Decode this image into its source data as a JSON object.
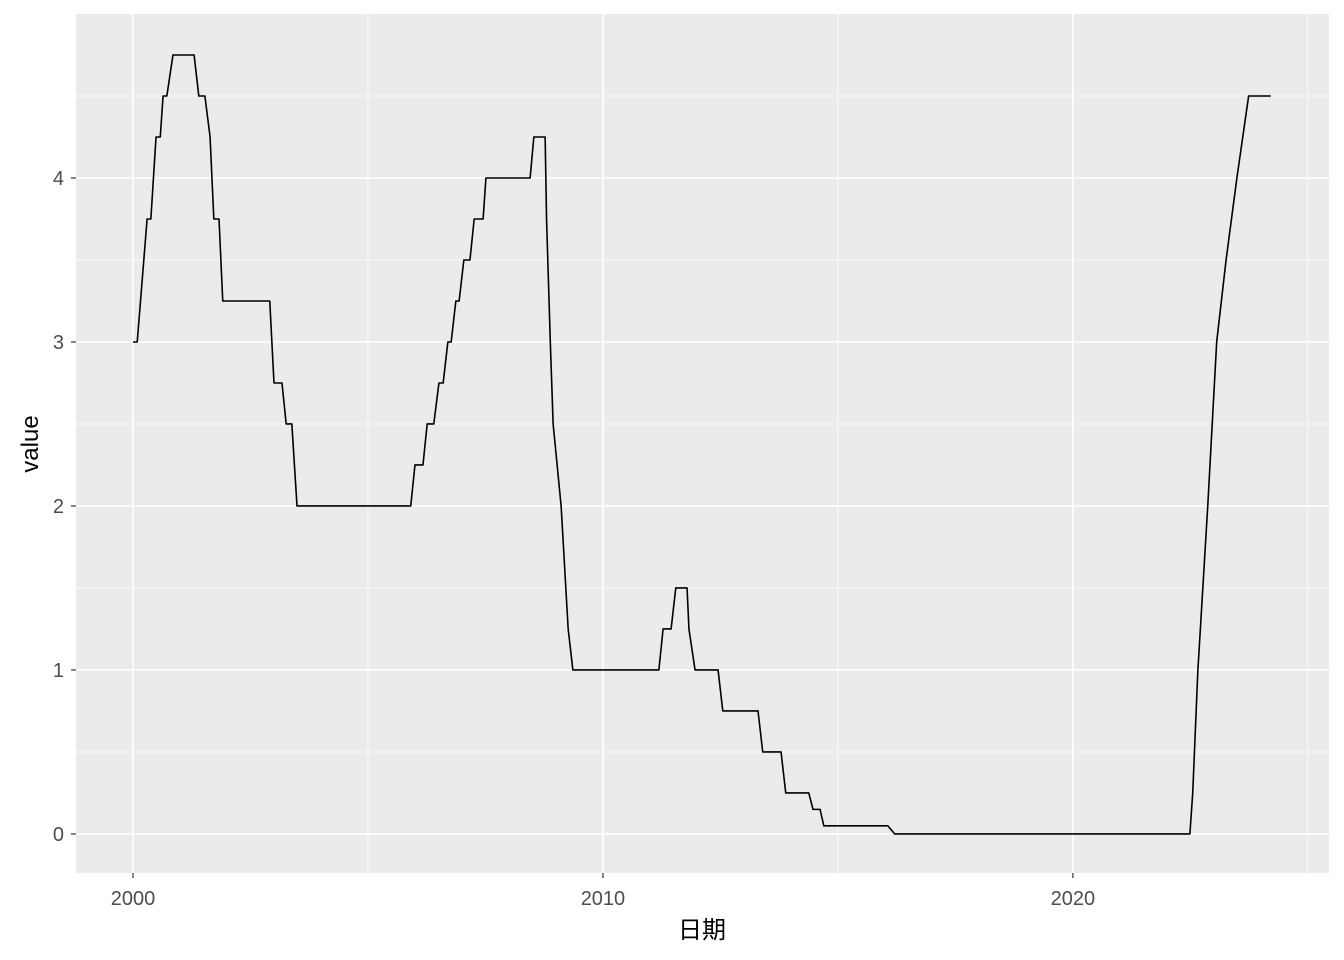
{
  "chart_data": {
    "type": "line",
    "x_label": "日期",
    "y_label": "value",
    "x": [
      2000.0,
      2000.09,
      2000.3,
      2000.38,
      2000.49,
      2000.58,
      2000.64,
      2000.72,
      2000.85,
      2001.3,
      2001.4,
      2001.53,
      2001.64,
      2001.72,
      2001.83,
      2001.91,
      2002.91,
      2003.0,
      2003.17,
      2003.26,
      2003.38,
      2003.49,
      2005.91,
      2006.0,
      2006.17,
      2006.26,
      2006.4,
      2006.51,
      2006.6,
      2006.7,
      2006.77,
      2006.87,
      2006.94,
      2007.04,
      2007.17,
      2007.26,
      2007.45,
      2007.51,
      2008.45,
      2008.53,
      2008.77,
      2008.8,
      2008.88,
      2008.94,
      2009.11,
      2009.26,
      2009.36,
      2011.19,
      2011.28,
      2011.45,
      2011.55,
      2011.79,
      2011.83,
      2011.96,
      2012.45,
      2012.55,
      2013.3,
      2013.4,
      2013.79,
      2013.89,
      2014.38,
      2014.47,
      2014.62,
      2014.7,
      2016.06,
      2016.21,
      2022.49,
      2022.55,
      2022.66,
      2022.87,
      2023.06,
      2023.26,
      2023.49,
      2023.74,
      2024.21
    ],
    "series": [
      {
        "color": "#000000",
        "values": [
          3.0,
          3.0,
          3.75,
          3.75,
          4.25,
          4.25,
          4.5,
          4.5,
          4.75,
          4.75,
          4.5,
          4.5,
          4.25,
          3.75,
          3.75,
          3.25,
          3.25,
          2.75,
          2.75,
          2.5,
          2.5,
          2.0,
          2.0,
          2.25,
          2.25,
          2.5,
          2.5,
          2.75,
          2.75,
          3.0,
          3.0,
          3.25,
          3.25,
          3.5,
          3.5,
          3.75,
          3.75,
          4.0,
          4.0,
          4.25,
          4.25,
          3.75,
          3.0,
          2.5,
          2.0,
          1.25,
          1.0,
          1.0,
          1.25,
          1.25,
          1.5,
          1.5,
          1.25,
          1.0,
          1.0,
          0.75,
          0.75,
          0.5,
          0.5,
          0.25,
          0.25,
          0.15,
          0.15,
          0.05,
          0.05,
          0.0,
          0.0,
          0.25,
          1.0,
          2.0,
          3.0,
          3.5,
          4.0,
          4.5,
          4.5
        ]
      }
    ],
    "xlim": [
      1998.787,
      2025.45
    ],
    "ylim": [
      -0.238,
      5.0
    ],
    "xticks": [
      2000,
      2010,
      2020
    ],
    "yticks": [
      0,
      1,
      2,
      3,
      4
    ],
    "x_minor_ticks": [
      2005,
      2015,
      2025
    ],
    "y_minor_ticks": [
      0.5,
      1.5,
      2.5,
      3.5,
      4.5
    ],
    "grid": true,
    "panel_color": "#EBEBEB"
  }
}
